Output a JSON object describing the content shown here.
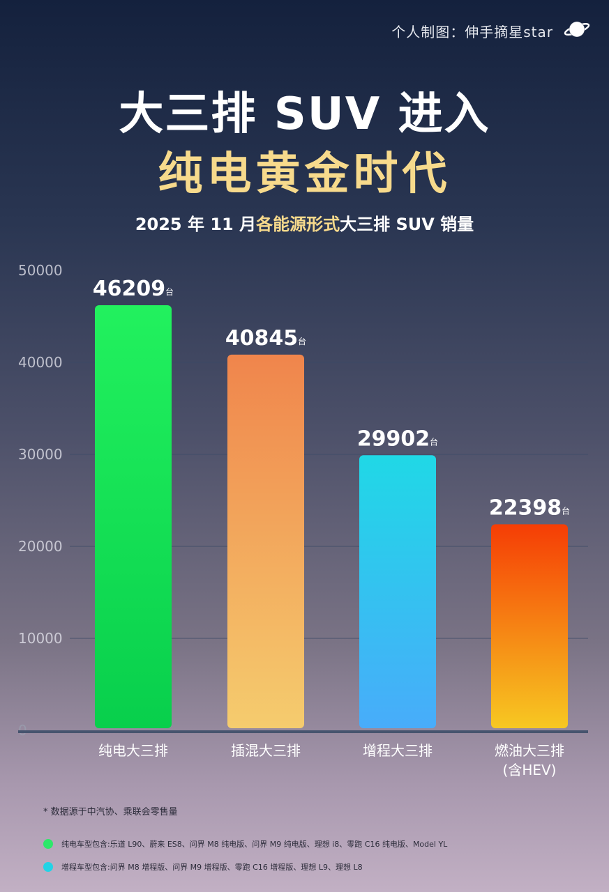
{
  "header": {
    "credit": "个人制图：伸手摘星star",
    "title_line1": "大三排 SUV 进入",
    "title_line2": "纯电黄金时代",
    "subtitle_pre": "2025 年 11 月",
    "subtitle_hl": "各能源形式",
    "subtitle_post": "大三排 SUV 销量"
  },
  "chart_data": {
    "type": "bar",
    "title": "2025 年 11 月各能源形式大三排 SUV 销量",
    "categories": [
      "纯电大三排",
      "插混大三排",
      "增程大三排",
      "燃油大三排\n(含HEV)"
    ],
    "values": [
      46209,
      40845,
      29902,
      22398
    ],
    "value_labels": [
      "46209",
      "40845",
      "29902",
      "22398"
    ],
    "unit": "台",
    "yticks": [
      "0",
      "10000",
      "20000",
      "30000",
      "40000",
      "50000"
    ],
    "ylim": [
      0,
      50000
    ],
    "grid": true,
    "colors": [
      [
        "#22f15e",
        "#08cf4c"
      ],
      [
        "#f0854c",
        "#f5cc6e"
      ],
      [
        "#20d8e6",
        "#48acfa"
      ],
      [
        "#f53d05",
        "#f7c822"
      ]
    ]
  },
  "notes": {
    "source": "* 数据源于中汽协、乘联会零售量",
    "legend": [
      {
        "color": "#2ee86a",
        "text": "纯电车型包含:乐道 L90、蔚来 ES8、问界 M8 纯电版、问界 M9 纯电版、理想 i8、零跑 C16 纯电版、Model YL"
      },
      {
        "color": "#22d3e6",
        "text": "增程车型包含:问界 M8 增程版、问界 M9 增程版、零跑 C16 增程版、理想 L9、理想 L8"
      }
    ]
  }
}
